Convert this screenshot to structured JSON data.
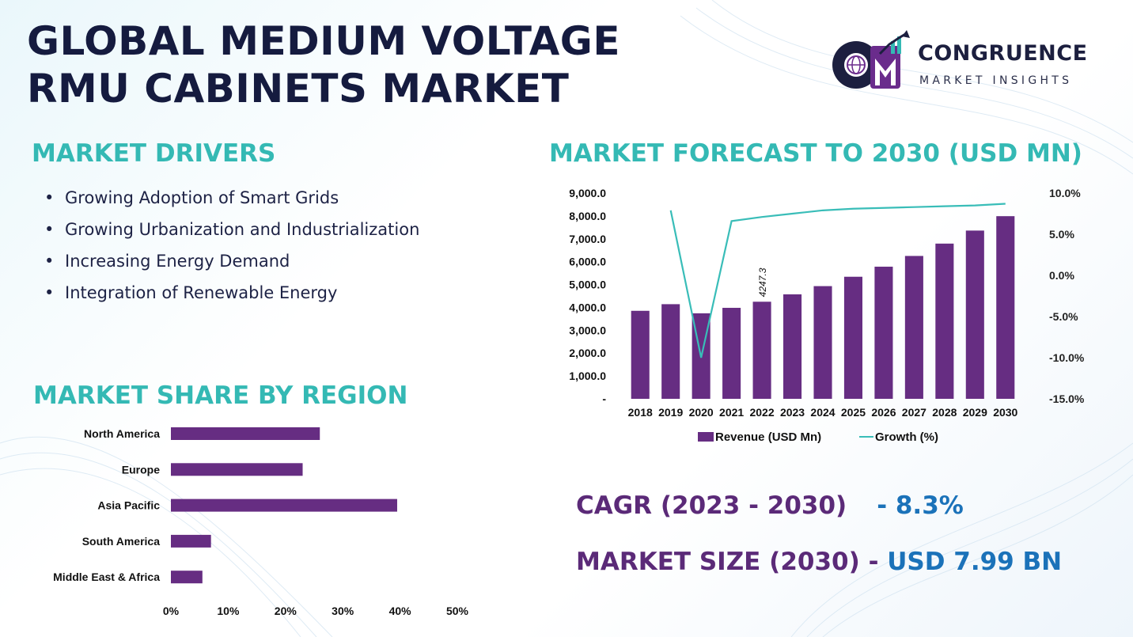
{
  "header": {
    "title_line1": "GLOBAL MEDIUM VOLTAGE",
    "title_line2": "RMU CABINETS MARKET"
  },
  "logo": {
    "brand": "CONGRUENCE",
    "subtitle": "MARKET INSIGHTS",
    "colors": {
      "navy": "#1c1f3f",
      "purple": "#6a2c8c",
      "teal": "#34b9b4"
    }
  },
  "drivers": {
    "heading": "MARKET DRIVERS",
    "items": [
      "Growing Adoption of Smart Grids",
      "Growing Urbanization and Industrialization",
      "Increasing Energy Demand",
      "Integration of Renewable Energy"
    ]
  },
  "forecast": {
    "heading": "MARKET FORECAST TO 2030 (USD MN)"
  },
  "region": {
    "heading": "MARKET SHARE BY REGION"
  },
  "stats": {
    "cagr_label": "CAGR (2023 - 2030)",
    "cagr_value": "- 8.3%",
    "size_label": "MARKET SIZE (2030) - ",
    "size_value": "USD 7.99 BN"
  },
  "colors": {
    "bar": "#662d82",
    "line": "#39bdb8",
    "heading": "#34b9b4",
    "stat_label": "#5b2a78",
    "stat_value": "#1b72b9"
  },
  "chart_data": [
    {
      "type": "bar",
      "categories": [
        "2018",
        "2019",
        "2020",
        "2021",
        "2022",
        "2023",
        "2024",
        "2025",
        "2026",
        "2027",
        "2028",
        "2029",
        "2030"
      ],
      "series": [
        {
          "name": "Revenue (USD Mn)",
          "type": "bar",
          "axis": "left",
          "values": [
            3850,
            4140,
            3740,
            3980,
            4247.3,
            4570,
            4930,
            5340,
            5780,
            6250,
            6790,
            7360,
            7990
          ]
        },
        {
          "name": "Growth (%)",
          "type": "line",
          "axis": "right",
          "values": [
            null,
            7.9,
            -10.0,
            6.6,
            7.1,
            7.5,
            7.9,
            8.1,
            8.2,
            8.3,
            8.4,
            8.5,
            8.7
          ]
        }
      ],
      "data_labels": [
        {
          "category": "2022",
          "text": "4247.3"
        }
      ],
      "y_left": {
        "range": [
          0,
          9000
        ],
        "ticks": [
          "-",
          "1,000.0",
          "2,000.0",
          "3,000.0",
          "4,000.0",
          "5,000.0",
          "6,000.0",
          "7,000.0",
          "8,000.0",
          "9,000.0"
        ]
      },
      "y_right": {
        "range": [
          -15,
          10
        ],
        "ticks": [
          "-15.0%",
          "-10.0%",
          "-5.0%",
          "0.0%",
          "5.0%",
          "10.0%"
        ]
      },
      "legend": "bottom",
      "grid": false
    },
    {
      "type": "bar",
      "orientation": "horizontal",
      "categories": [
        "North America",
        "Europe",
        "Asia Pacific",
        "South America",
        "Middle East & Africa"
      ],
      "values": [
        26,
        23,
        39.5,
        7,
        5.5
      ],
      "x_ticks": [
        "0%",
        "10%",
        "20%",
        "30%",
        "40%",
        "50%"
      ],
      "xlim": [
        0,
        50
      ],
      "grid": false
    }
  ]
}
